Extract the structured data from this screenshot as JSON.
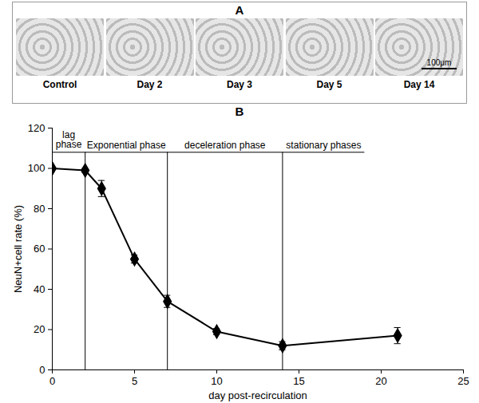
{
  "panel_a": {
    "label": "A",
    "images": [
      "Control",
      "Day 2",
      "Day 3",
      "Day 5",
      "Day 14"
    ],
    "scale_bar": "100μm"
  },
  "chart_data": {
    "type": "line",
    "title": "B",
    "x_label": "day post-recirculation",
    "y_label": "NeuN+cell rate (%)",
    "x": [
      0,
      2,
      3,
      5,
      7,
      10,
      14,
      21
    ],
    "series": [
      {
        "name": "NeuN+cell rate",
        "color": "#000000",
        "marker": "diamond",
        "values": [
          100,
          99,
          90,
          55,
          34,
          19,
          12,
          17
        ],
        "errors": [
          1,
          1,
          4,
          2,
          3,
          1.5,
          2,
          4
        ]
      }
    ],
    "xlim": [
      0,
      25
    ],
    "xticks": [
      0,
      5,
      10,
      15,
      20,
      25
    ],
    "ylim": [
      0,
      120
    ],
    "yticks": [
      0,
      20,
      40,
      60,
      80,
      100,
      120
    ],
    "grid": false,
    "phases": [
      {
        "label": "lag phase",
        "start": 0,
        "end": 2
      },
      {
        "label": "Exponential phase",
        "start": 2,
        "end": 7
      },
      {
        "label": "deceleration phase",
        "start": 7,
        "end": 14
      },
      {
        "label": "stationary phases",
        "start": 14,
        "end": 19
      }
    ],
    "phase_line_y": 108
  }
}
